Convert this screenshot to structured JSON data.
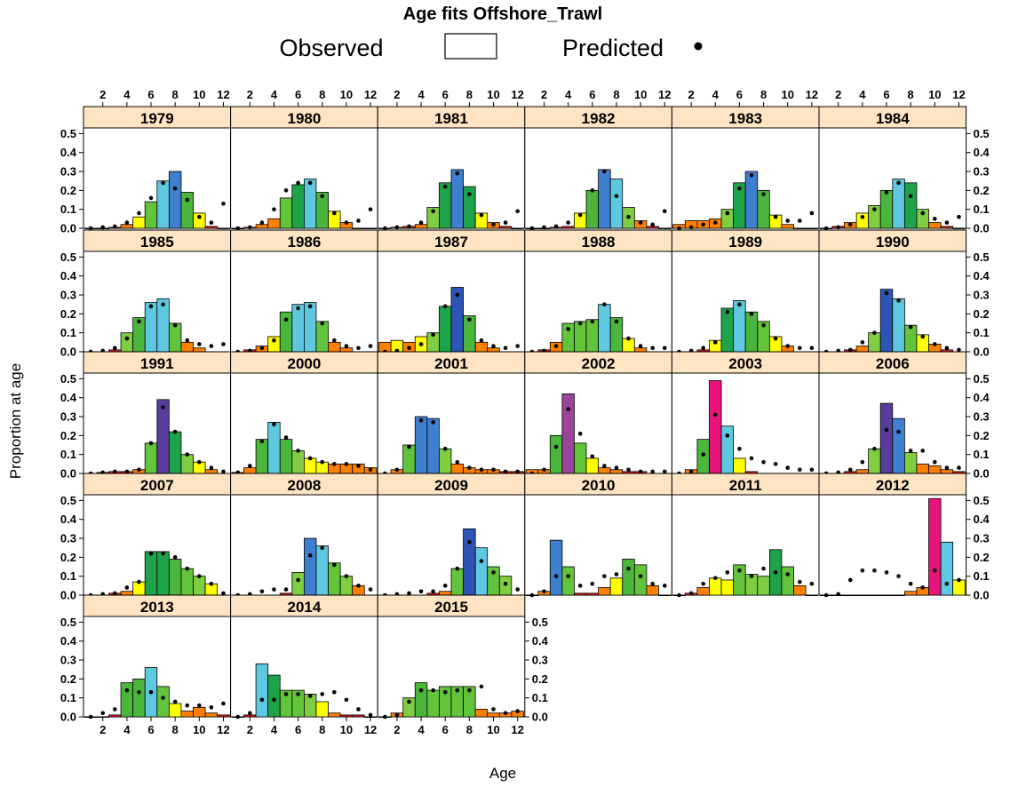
{
  "chart_data": {
    "type": "bar",
    "title": "Age fits Offshore_Trawl",
    "xlabel": "Age",
    "ylabel": "Proportion at age",
    "x": [
      1,
      2,
      3,
      4,
      5,
      6,
      7,
      8,
      9,
      10,
      11,
      12
    ],
    "x_ticks": [
      "2",
      "4",
      "6",
      "8",
      "10",
      "12"
    ],
    "x_tick_values": [
      2,
      4,
      6,
      8,
      10,
      12
    ],
    "y_ticks": [
      "0.0",
      "0.1",
      "0.2",
      "0.3",
      "0.4",
      "0.5"
    ],
    "y_tick_values": [
      0,
      0.1,
      0.2,
      0.3,
      0.4,
      0.5
    ],
    "ylim": [
      0,
      0.53
    ],
    "xlim": [
      0.4,
      12.6
    ],
    "legend": {
      "placement": "top",
      "observed_label": "Observed",
      "predicted_label": "Predicted"
    },
    "grid": false,
    "colors": {
      "strip_fill": "#ffe4c4",
      "dot": "#000000",
      "palette": [
        "#e31a1c",
        "#ff7f00",
        "#ffff00",
        "#7fcd41",
        "#62c43a",
        "#4ab63c",
        "#1ea34a",
        "#5ec8e0",
        "#3f7fcf",
        "#2e55b5",
        "#5a3c9c",
        "#9b449c",
        "#c2308e",
        "#e8137b"
      ]
    },
    "panels": [
      {
        "name": "1979",
        "observed": [
          0,
          0,
          0.005,
          0.02,
          0.06,
          0.14,
          0.25,
          0.3,
          0.19,
          0.08,
          0.01,
          0
        ],
        "predicted": [
          0,
          0.005,
          0.01,
          0.03,
          0.08,
          0.16,
          0.24,
          0.21,
          0.15,
          0.06,
          0.03,
          0.13
        ]
      },
      {
        "name": "1980",
        "observed": [
          0,
          0.005,
          0.02,
          0.05,
          0.16,
          0.23,
          0.26,
          0.19,
          0.09,
          0.03,
          0,
          0
        ],
        "predicted": [
          0,
          0.005,
          0.03,
          0.1,
          0.2,
          0.24,
          0.24,
          0.17,
          0.08,
          0.03,
          0.04,
          0.1
        ]
      },
      {
        "name": "1981",
        "observed": [
          0,
          0.005,
          0.01,
          0.02,
          0.11,
          0.24,
          0.31,
          0.22,
          0.08,
          0.03,
          0.01,
          0
        ],
        "predicted": [
          0,
          0.005,
          0.01,
          0.03,
          0.09,
          0.22,
          0.29,
          0.18,
          0.07,
          0.02,
          0.03,
          0.09
        ]
      },
      {
        "name": "1982",
        "observed": [
          0,
          0,
          0.005,
          0.01,
          0.08,
          0.2,
          0.31,
          0.26,
          0.11,
          0.04,
          0.01,
          0
        ],
        "predicted": [
          0,
          0.005,
          0.01,
          0.03,
          0.07,
          0.2,
          0.3,
          0.17,
          0.06,
          0.03,
          0.02,
          0.09
        ]
      },
      {
        "name": "1983",
        "observed": [
          0.02,
          0.04,
          0.04,
          0.05,
          0.1,
          0.24,
          0.3,
          0.2,
          0.07,
          0.02,
          0,
          0
        ],
        "predicted": [
          0,
          0.005,
          0.02,
          0.03,
          0.08,
          0.21,
          0.28,
          0.18,
          0.06,
          0.04,
          0.04,
          0.08
        ]
      },
      {
        "name": "1984",
        "observed": [
          0,
          0.01,
          0.03,
          0.08,
          0.12,
          0.2,
          0.26,
          0.24,
          0.1,
          0.03,
          0.01,
          0
        ],
        "predicted": [
          0,
          0.005,
          0.02,
          0.06,
          0.1,
          0.19,
          0.24,
          0.17,
          0.08,
          0.05,
          0.03,
          0.06
        ]
      },
      {
        "name": "1985",
        "observed": [
          0,
          0,
          0.01,
          0.1,
          0.18,
          0.26,
          0.28,
          0.15,
          0.05,
          0.02,
          0,
          0
        ],
        "predicted": [
          0,
          0.005,
          0.02,
          0.07,
          0.16,
          0.24,
          0.25,
          0.14,
          0.06,
          0.04,
          0.03,
          0.04
        ]
      },
      {
        "name": "1986",
        "observed": [
          0,
          0.01,
          0.03,
          0.08,
          0.21,
          0.25,
          0.26,
          0.16,
          0.05,
          0.02,
          0,
          0
        ],
        "predicted": [
          0,
          0.005,
          0.02,
          0.06,
          0.17,
          0.23,
          0.24,
          0.15,
          0.06,
          0.03,
          0.02,
          0.03
        ]
      },
      {
        "name": "1987",
        "observed": [
          0.05,
          0.06,
          0.05,
          0.08,
          0.1,
          0.24,
          0.34,
          0.19,
          0.05,
          0.02,
          0,
          0
        ],
        "predicted": [
          0,
          0.005,
          0.02,
          0.04,
          0.09,
          0.24,
          0.3,
          0.17,
          0.06,
          0.03,
          0.02,
          0.03
        ]
      },
      {
        "name": "1988",
        "observed": [
          0,
          0.01,
          0.05,
          0.15,
          0.16,
          0.17,
          0.25,
          0.18,
          0.07,
          0.02,
          0,
          0
        ],
        "predicted": [
          0,
          0.005,
          0.03,
          0.12,
          0.15,
          0.16,
          0.25,
          0.16,
          0.07,
          0.03,
          0.02,
          0.02
        ]
      },
      {
        "name": "1989",
        "observed": [
          0,
          0,
          0.01,
          0.06,
          0.23,
          0.27,
          0.21,
          0.16,
          0.08,
          0.03,
          0,
          0
        ],
        "predicted": [
          0,
          0.005,
          0.02,
          0.05,
          0.21,
          0.25,
          0.2,
          0.14,
          0.07,
          0.03,
          0.02,
          0.02
        ]
      },
      {
        "name": "1990",
        "observed": [
          0,
          0,
          0.01,
          0.03,
          0.1,
          0.33,
          0.28,
          0.14,
          0.09,
          0.04,
          0.01,
          0
        ],
        "predicted": [
          0,
          0.005,
          0.01,
          0.05,
          0.1,
          0.31,
          0.27,
          0.13,
          0.08,
          0.04,
          0.02,
          0.01
        ]
      },
      {
        "name": "1991",
        "observed": [
          0,
          0.005,
          0.01,
          0.01,
          0.02,
          0.16,
          0.39,
          0.22,
          0.1,
          0.06,
          0.02,
          0
        ],
        "predicted": [
          0,
          0.005,
          0.01,
          0.01,
          0.02,
          0.16,
          0.35,
          0.22,
          0.1,
          0.06,
          0.03,
          0.01
        ]
      },
      {
        "name": "2000",
        "observed": [
          0.005,
          0.03,
          0.18,
          0.27,
          0.18,
          0.12,
          0.08,
          0.06,
          0.05,
          0.05,
          0.05,
          0.03
        ],
        "predicted": [
          0.005,
          0.04,
          0.17,
          0.26,
          0.19,
          0.12,
          0.08,
          0.06,
          0.05,
          0.05,
          0.04,
          0.02
        ]
      },
      {
        "name": "2001",
        "observed": [
          0,
          0.02,
          0.15,
          0.3,
          0.29,
          0.13,
          0.05,
          0.03,
          0.02,
          0.02,
          0.01,
          0.01
        ],
        "predicted": [
          0,
          0.02,
          0.14,
          0.28,
          0.27,
          0.13,
          0.06,
          0.03,
          0.02,
          0.02,
          0.01,
          0.01
        ]
      },
      {
        "name": "2002",
        "observed": [
          0.02,
          0.02,
          0.2,
          0.42,
          0.16,
          0.08,
          0.03,
          0.02,
          0.01,
          0.01,
          0,
          0
        ],
        "predicted": [
          0,
          0.02,
          0.14,
          0.34,
          0.21,
          0.09,
          0.04,
          0.03,
          0.02,
          0.01,
          0.01,
          0.01
        ]
      },
      {
        "name": "2003",
        "observed": [
          0,
          0.02,
          0.18,
          0.49,
          0.25,
          0.08,
          0.01,
          0,
          0,
          0,
          0,
          0
        ],
        "predicted": [
          0,
          0.01,
          0.1,
          0.31,
          0.2,
          0.13,
          0.08,
          0.06,
          0.05,
          0.03,
          0.02,
          0.02
        ]
      },
      {
        "name": "2006",
        "observed": [
          0,
          0,
          0.01,
          0.02,
          0.13,
          0.37,
          0.29,
          0.11,
          0.05,
          0.04,
          0.02,
          0.01
        ],
        "predicted": [
          0,
          0.005,
          0.02,
          0.06,
          0.13,
          0.23,
          0.22,
          0.12,
          0.12,
          0.06,
          0.03,
          0.03
        ]
      },
      {
        "name": "2007",
        "observed": [
          0,
          0,
          0.01,
          0.02,
          0.07,
          0.23,
          0.23,
          0.19,
          0.14,
          0.1,
          0.06,
          0
        ],
        "predicted": [
          0,
          0.005,
          0.01,
          0.04,
          0.07,
          0.22,
          0.22,
          0.2,
          0.14,
          0.1,
          0.06,
          0.01
        ]
      },
      {
        "name": "2008",
        "observed": [
          0,
          0,
          0,
          0,
          0.01,
          0.12,
          0.3,
          0.26,
          0.17,
          0.1,
          0.05,
          0
        ],
        "predicted": [
          0,
          0.005,
          0.02,
          0.03,
          0.03,
          0.08,
          0.21,
          0.25,
          0.16,
          0.1,
          0.05,
          0.03
        ]
      },
      {
        "name": "2009",
        "observed": [
          0,
          0,
          0,
          0,
          0.01,
          0.02,
          0.14,
          0.35,
          0.25,
          0.15,
          0.1,
          0
        ],
        "predicted": [
          0,
          0.005,
          0.01,
          0.02,
          0.02,
          0.05,
          0.14,
          0.28,
          0.18,
          0.12,
          0.06,
          0.03
        ]
      },
      {
        "name": "2010",
        "observed": [
          0,
          0.02,
          0.29,
          0.15,
          0.01,
          0.01,
          0.04,
          0.09,
          0.19,
          0.16,
          0.05,
          0
        ],
        "predicted": [
          0,
          0.02,
          0.1,
          0.1,
          0.05,
          0.06,
          0.1,
          0.11,
          0.14,
          0.1,
          0.06,
          0.05
        ]
      },
      {
        "name": "2011",
        "observed": [
          0,
          0.01,
          0.04,
          0.09,
          0.08,
          0.16,
          0.11,
          0.1,
          0.24,
          0.15,
          0.05,
          0
        ],
        "predicted": [
          0,
          0.01,
          0.06,
          0.09,
          0.12,
          0.13,
          0.1,
          0.14,
          0.12,
          0.11,
          0.07,
          0.06
        ]
      },
      {
        "name": "2012",
        "observed": [
          0,
          0,
          0,
          0,
          0,
          0,
          0,
          0.02,
          0.04,
          0.51,
          0.28,
          0.08
        ],
        "predicted": [
          0,
          0.005,
          0.08,
          0.13,
          0.13,
          0.12,
          0.1,
          0.06,
          0.04,
          0.13,
          0.06,
          0.08
        ]
      },
      {
        "name": "2013",
        "observed": [
          0,
          0,
          0.01,
          0.18,
          0.2,
          0.26,
          0.16,
          0.07,
          0.03,
          0.05,
          0.02,
          0.01
        ],
        "predicted": [
          0,
          0.02,
          0.04,
          0.14,
          0.13,
          0.13,
          0.1,
          0.08,
          0.06,
          0.06,
          0.05,
          0.07
        ]
      },
      {
        "name": "2014",
        "observed": [
          0,
          0.01,
          0.28,
          0.22,
          0.14,
          0.14,
          0.12,
          0.08,
          0.02,
          0.01,
          0.01,
          0
        ],
        "predicted": [
          0,
          0.02,
          0.09,
          0.09,
          0.12,
          0.12,
          0.11,
          0.12,
          0.13,
          0.09,
          0.04,
          0.01
        ]
      },
      {
        "name": "2015",
        "observed": [
          0,
          0.02,
          0.1,
          0.18,
          0.14,
          0.16,
          0.16,
          0.16,
          0.04,
          0.02,
          0.02,
          0.03
        ],
        "predicted": [
          0,
          0.01,
          0.08,
          0.14,
          0.14,
          0.13,
          0.14,
          0.14,
          0.16,
          0.04,
          0.02,
          0.03
        ]
      }
    ]
  }
}
